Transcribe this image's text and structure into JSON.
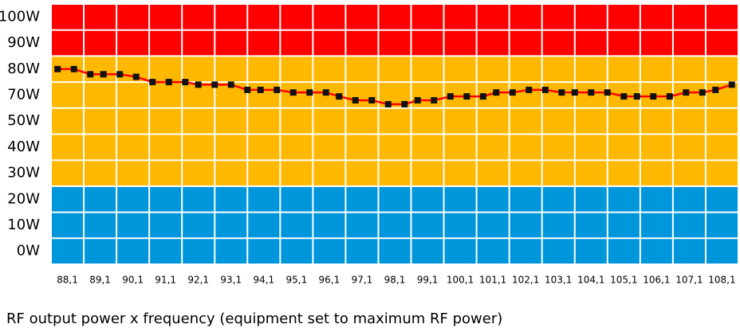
{
  "chart_data": {
    "type": "line",
    "caption": "RF output power x frequency (equipment set to maximum RF power)",
    "categories": [
      "88,1",
      "89,1",
      "90,1",
      "91,1",
      "92,1",
      "93,1",
      "94,1",
      "95,1",
      "96,1",
      "97,1",
      "98,1",
      "99,1",
      "100,1",
      "101,1",
      "102,1",
      "103,1",
      "104,1",
      "105,1",
      "106,1",
      "107,1",
      "108,1"
    ],
    "xlim": [
      87.6,
      108.6
    ],
    "yticks": [
      {
        "value": 100,
        "label": "100W"
      },
      {
        "value": 90,
        "label": "90W"
      },
      {
        "value": 80,
        "label": "80W"
      },
      {
        "value": 70,
        "label": "70W"
      },
      {
        "value": 50,
        "label": "50W"
      },
      {
        "value": 40,
        "label": "40W"
      },
      {
        "value": 30,
        "label": "30W"
      },
      {
        "value": 20,
        "label": "20W"
      },
      {
        "value": 10,
        "label": "10W"
      },
      {
        "value": 0,
        "label": "0W"
      }
    ],
    "x": [
      87.8,
      88.3,
      88.8,
      89.2,
      89.7,
      90.2,
      90.7,
      91.2,
      91.7,
      92.1,
      92.6,
      93.1,
      93.6,
      94.0,
      94.5,
      95.0,
      95.5,
      96.0,
      96.4,
      96.9,
      97.4,
      97.9,
      98.4,
      98.8,
      99.3,
      99.8,
      100.3,
      100.8,
      101.2,
      101.7,
      102.2,
      102.7,
      103.2,
      103.6,
      104.1,
      104.6,
      105.1,
      105.5,
      106.0,
      106.5,
      107.0,
      107.5,
      107.9,
      108.4
    ],
    "values": [
      80,
      80,
      78,
      78,
      78,
      77,
      75,
      75,
      75,
      74,
      74,
      74,
      72,
      72,
      72,
      71,
      71,
      71,
      69,
      66,
      66,
      63,
      63,
      66,
      66,
      69,
      69,
      69,
      71,
      71,
      72,
      72,
      71,
      71,
      71,
      71,
      69,
      69,
      69,
      69,
      71,
      71,
      72,
      74
    ],
    "color": "#ff0000",
    "marker_color": "#111111",
    "grid": true
  }
}
